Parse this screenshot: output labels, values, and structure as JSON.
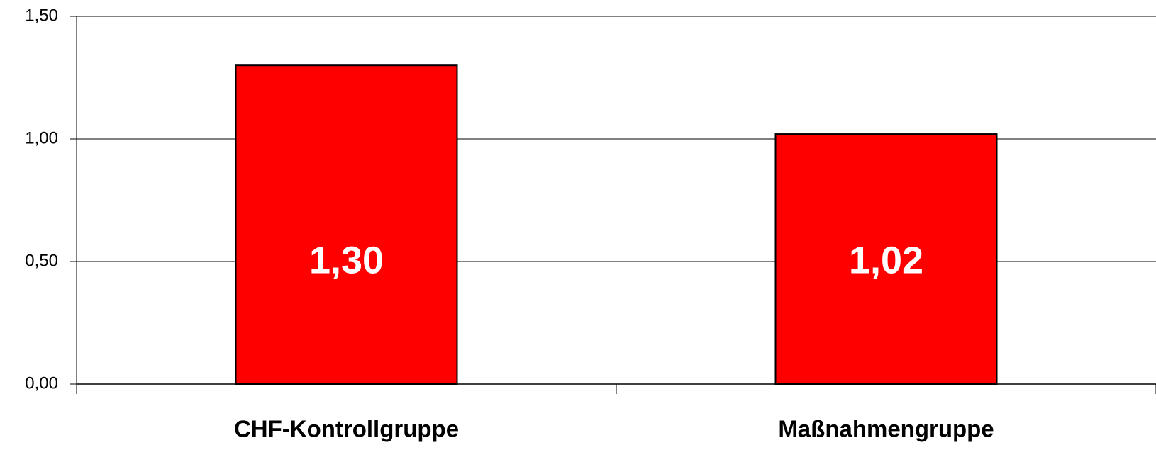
{
  "chart_data": {
    "type": "bar",
    "categories": [
      "CHF-Kontrollgruppe",
      "Maßnahmengruppe"
    ],
    "values": [
      1.3,
      1.02
    ],
    "value_labels": [
      "1,30",
      "1,02"
    ],
    "color": "#ff0000",
    "ylim": [
      0,
      1.5
    ],
    "yticks": [
      {
        "value": 0,
        "label": "0,00"
      },
      {
        "value": 0.5,
        "label": "0,50"
      },
      {
        "value": 1,
        "label": "1,00"
      },
      {
        "value": 1.5,
        "label": "1,50"
      }
    ],
    "grid": true
  }
}
